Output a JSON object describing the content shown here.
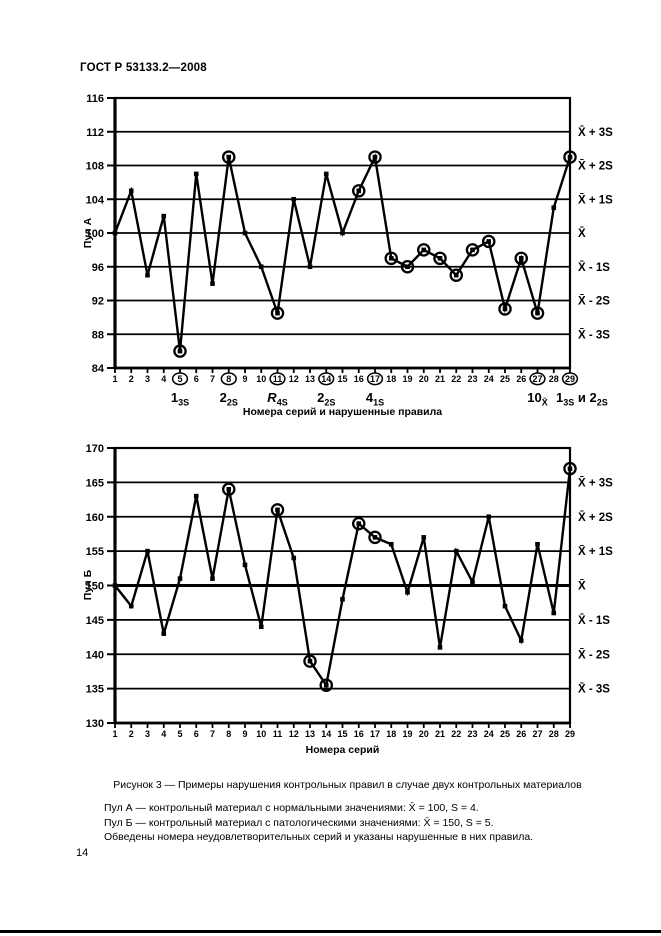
{
  "page": {
    "header": "ГОСТ Р 53133.2—2008",
    "caption": "Рисунок 3 — Примеры нарушения контрольных правил в случае двух контрольных материалов",
    "note_pool_a": "Пул А — контрольный материал с нормальными значениями: X̄  = 100, S = 4.",
    "note_pool_b": "Пул Б — контрольный материал с патологическими значениями: X̄  = 150, S = 5.",
    "note_circled": "Обведены номера неудовлетворительных серий и указаны нарушенные в них правила.",
    "page_number": "14"
  },
  "chart_data": [
    {
      "type": "line",
      "pool_label": "Пул А",
      "xlabel": "Номера серий и нарушенные правила",
      "ylim": [
        84,
        116
      ],
      "yticks": [
        116,
        112,
        108,
        104,
        100,
        96,
        92,
        88,
        84
      ],
      "mean_value": 100,
      "grid": true,
      "legend_position": "right",
      "series_numbers": [
        1,
        2,
        3,
        4,
        5,
        6,
        7,
        8,
        9,
        10,
        11,
        12,
        13,
        14,
        15,
        16,
        17,
        18,
        19,
        20,
        21,
        22,
        23,
        24,
        25,
        26,
        27,
        28,
        29
      ],
      "values": [
        100,
        105,
        95,
        102,
        86,
        107,
        94,
        109,
        100,
        96,
        90.5,
        104,
        96,
        107,
        100,
        105,
        109,
        97,
        96,
        98,
        97,
        95,
        98,
        99,
        91,
        97,
        90.5,
        103,
        109
      ],
      "circled_points": [
        5,
        8,
        11,
        16,
        17,
        18,
        19,
        20,
        21,
        22,
        23,
        24,
        25,
        26,
        27,
        29
      ],
      "circled_x_labels": [
        5,
        8,
        11,
        14,
        17,
        27,
        29
      ],
      "sigma_labels": [
        {
          "text": "X̄ + 3S",
          "value": 112
        },
        {
          "text": "X̄ + 2S",
          "value": 108
        },
        {
          "text": "X̄ + 1S",
          "value": 104
        },
        {
          "text": "X̄",
          "value": 100
        },
        {
          "text": "X̄ - 1S",
          "value": 96
        },
        {
          "text": "X̄ - 2S",
          "value": 92
        },
        {
          "text": "X̄ - 3S",
          "value": 88
        }
      ],
      "rule_labels": [
        {
          "at": 5,
          "parts": [
            {
              "main": "1",
              "sub": "3S"
            }
          ]
        },
        {
          "at": 8,
          "parts": [
            {
              "main": "2",
              "sub": "2S"
            }
          ]
        },
        {
          "at": 11,
          "parts": [
            {
              "main": "R",
              "sub": "4S",
              "italic": true
            }
          ]
        },
        {
          "at": 14,
          "parts": [
            {
              "main": "2",
              "sub": "2S"
            }
          ]
        },
        {
          "at": 17,
          "parts": [
            {
              "main": "4",
              "sub": "1S"
            }
          ]
        },
        {
          "at": 27,
          "parts": [
            {
              "main": "10",
              "sub": "X̄"
            }
          ]
        },
        {
          "at": 29,
          "anchor": "start",
          "parts": [
            {
              "main": "1",
              "sub": "3S"
            },
            {
              "main": " и ",
              "sub": ""
            },
            {
              "main": "2",
              "sub": "2S"
            }
          ]
        }
      ]
    },
    {
      "type": "line",
      "pool_label": "Пул Б",
      "xlabel": "Номера серий",
      "ylim": [
        130,
        170
      ],
      "yticks": [
        170,
        165,
        160,
        155,
        150,
        145,
        140,
        135,
        130
      ],
      "mean_value": 150,
      "grid": true,
      "legend_position": "right",
      "series_numbers": [
        1,
        2,
        3,
        4,
        5,
        6,
        7,
        8,
        9,
        10,
        11,
        12,
        13,
        14,
        15,
        16,
        17,
        18,
        19,
        20,
        21,
        22,
        23,
        24,
        25,
        26,
        27,
        28,
        29
      ],
      "values": [
        150,
        147,
        155,
        143,
        151,
        163,
        151,
        164,
        153,
        144,
        161,
        154,
        139,
        135.5,
        148,
        159,
        157,
        156,
        149,
        157,
        141,
        155,
        150.5,
        160,
        147,
        142,
        156,
        146,
        167
      ],
      "circled_points": [
        8,
        11,
        13,
        14,
        16,
        17,
        29
      ],
      "circled_x_labels": [],
      "sigma_labels": [
        {
          "text": "X̄ + 3S",
          "value": 165
        },
        {
          "text": "X̄ + 2S",
          "value": 160
        },
        {
          "text": "X̄ + 1S",
          "value": 155
        },
        {
          "text": "X̄",
          "value": 150
        },
        {
          "text": "X̄ - 1S",
          "value": 145
        },
        {
          "text": "X̄ - 2S",
          "value": 140
        },
        {
          "text": "X̄ - 3S",
          "value": 135
        }
      ],
      "rule_labels": []
    }
  ]
}
